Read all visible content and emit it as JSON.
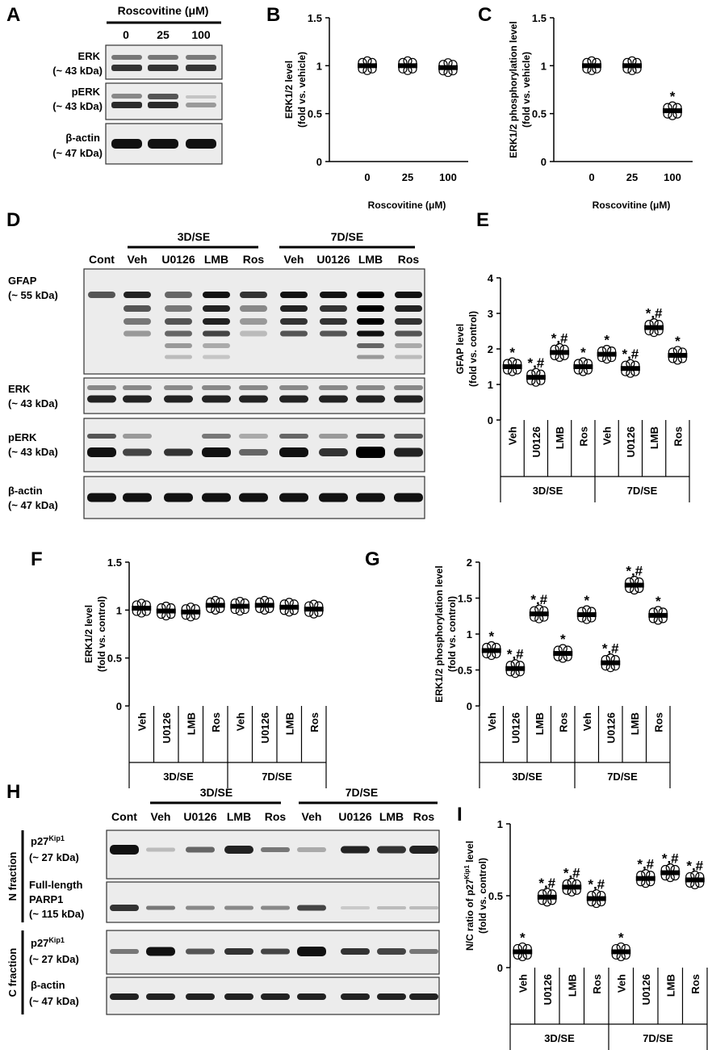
{
  "panels": {
    "A": {
      "label": "A",
      "header": "Roscovitine (μM)",
      "lanes": [
        "0",
        "25",
        "100"
      ],
      "blots": [
        {
          "name": "ERK",
          "kda": "(~ 43 kDa)"
        },
        {
          "name": "pERK",
          "kda": "(~ 43 kDa)"
        },
        {
          "name": "β-actin",
          "kda": "(~ 47 kDa)"
        }
      ]
    },
    "D": {
      "label": "D",
      "groups": [
        "3D/SE",
        "7D/SE"
      ],
      "lanes": [
        "Cont",
        "Veh",
        "U0126",
        "LMB",
        "Ros",
        "Veh",
        "U0126",
        "LMB",
        "Ros"
      ],
      "blots": [
        {
          "name": "GFAP",
          "kda": "(~ 55 kDa)"
        },
        {
          "name": "ERK",
          "kda": "(~ 43 kDa)"
        },
        {
          "name": "pERK",
          "kda": "(~ 43 kDa)"
        },
        {
          "name": "β-actin",
          "kda": "(~ 47 kDa)"
        }
      ]
    },
    "H": {
      "label": "H",
      "groups": [
        "3D/SE",
        "7D/SE"
      ],
      "lanes": [
        "Cont",
        "Veh",
        "U0126",
        "LMB",
        "Ros",
        "Veh",
        "U0126",
        "LMB",
        "Ros"
      ],
      "fractions": [
        "N fraction",
        "C fraction"
      ],
      "blots": [
        {
          "name": "p27",
          "sup": "Kip1",
          "kda": "(~ 27 kDa)"
        },
        {
          "name": "Full-length",
          "name2": "PARP1",
          "kda": "(~ 115 kDa)"
        },
        {
          "name": "p27",
          "sup": "Kip1",
          "kda": "(~ 27 kDa)"
        },
        {
          "name": "β-actin",
          "kda": "(~ 47 kDa)"
        }
      ]
    }
  },
  "chart_data": [
    {
      "panel": "B",
      "type": "scatter",
      "title": "",
      "ylabel": "ERK1/2 level",
      "ylabel2": "(fold vs. vehicle)",
      "xlabel": "Roscovitine (μM)",
      "categories": [
        "0",
        "25",
        "100"
      ],
      "ylim": [
        0,
        1.5
      ],
      "yticks": [
        "0",
        "0.5",
        "1",
        "1.5"
      ],
      "means": [
        1.0,
        1.0,
        0.98
      ],
      "stars": [
        "",
        "",
        ""
      ]
    },
    {
      "panel": "C",
      "type": "scatter",
      "title": "",
      "ylabel": "ERK1/2 phosphorylation level",
      "ylabel2": "(fold vs. vehicle)",
      "xlabel": "Roscovitine (μM)",
      "categories": [
        "0",
        "25",
        "100"
      ],
      "ylim": [
        0,
        1.5
      ],
      "yticks": [
        "0",
        "0.5",
        "1",
        "1.5"
      ],
      "means": [
        1.0,
        1.0,
        0.53
      ],
      "stars": [
        "",
        "",
        "*"
      ]
    },
    {
      "panel": "E",
      "type": "scatter",
      "title": "",
      "ylabel": "GFAP level",
      "ylabel2": "(fold vs. control)",
      "groups": [
        "3D/SE",
        "7D/SE"
      ],
      "categories": [
        "Veh",
        "U0126",
        "LMB",
        "Ros",
        "Veh",
        "U0126",
        "LMB",
        "Ros"
      ],
      "ylim": [
        0,
        4
      ],
      "yticks": [
        "0",
        "1",
        "2",
        "3",
        "4"
      ],
      "means": [
        1.5,
        1.2,
        1.9,
        1.5,
        1.85,
        1.45,
        2.6,
        1.82
      ],
      "stars": [
        "*",
        "*,#",
        "*,#",
        "*",
        "*",
        "*,#",
        "*,#",
        "*"
      ]
    },
    {
      "panel": "F",
      "type": "scatter",
      "title": "",
      "ylabel": "ERK1/2 level",
      "ylabel2": "(fold vs. control)",
      "groups": [
        "3D/SE",
        "7D/SE"
      ],
      "categories": [
        "Veh",
        "U0126",
        "LMB",
        "Ros",
        "Veh",
        "U0126",
        "LMB",
        "Ros"
      ],
      "ylim": [
        0,
        1.5
      ],
      "yticks": [
        "0",
        "0.5",
        "1",
        "1.5"
      ],
      "means": [
        1.02,
        0.99,
        0.98,
        1.05,
        1.04,
        1.05,
        1.03,
        1.01
      ],
      "stars": [
        "",
        "",
        "",
        "",
        "",
        "",
        "",
        ""
      ]
    },
    {
      "panel": "G",
      "type": "scatter",
      "title": "",
      "ylabel": "ERK1/2 phosphorylation level",
      "ylabel2": "(fold vs. control)",
      "groups": [
        "3D/SE",
        "7D/SE"
      ],
      "categories": [
        "Veh",
        "U0126",
        "LMB",
        "Ros",
        "Veh",
        "U0126",
        "LMB",
        "Ros"
      ],
      "ylim": [
        0,
        2
      ],
      "yticks": [
        "0",
        "0.5",
        "1",
        "1.5",
        "2"
      ],
      "means": [
        0.77,
        0.52,
        1.28,
        0.73,
        1.27,
        0.6,
        1.68,
        1.26
      ],
      "stars": [
        "*",
        "*,#",
        "*,#",
        "*",
        "*",
        "*,#",
        "*,#",
        "*"
      ]
    },
    {
      "panel": "I",
      "type": "scatter",
      "title": "",
      "ylabel": "N/C ratio of p27Kip1 level",
      "ylabel2": "(fold vs. control)",
      "groups": [
        "3D/SE",
        "7D/SE"
      ],
      "categories": [
        "Veh",
        "U0126",
        "LMB",
        "Ros",
        "Veh",
        "U0126",
        "LMB",
        "Ros"
      ],
      "ylim": [
        0,
        1
      ],
      "yticks": [
        "0",
        "0.5",
        "1"
      ],
      "means": [
        0.11,
        0.49,
        0.56,
        0.48,
        0.11,
        0.62,
        0.66,
        0.61
      ],
      "stars": [
        "*",
        "*,#",
        "*,#",
        "*,#",
        "*",
        "*,#",
        "*,#",
        "*,#"
      ]
    }
  ]
}
